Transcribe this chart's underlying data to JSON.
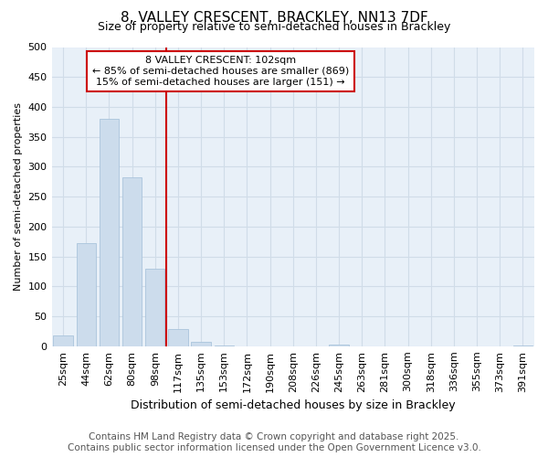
{
  "title1": "8, VALLEY CRESCENT, BRACKLEY, NN13 7DF",
  "title2": "Size of property relative to semi-detached houses in Brackley",
  "xlabel": "Distribution of semi-detached houses by size in Brackley",
  "ylabel": "Number of semi-detached properties",
  "categories": [
    "25sqm",
    "44sqm",
    "62sqm",
    "80sqm",
    "98sqm",
    "117sqm",
    "135sqm",
    "153sqm",
    "172sqm",
    "190sqm",
    "208sqm",
    "226sqm",
    "245sqm",
    "263sqm",
    "281sqm",
    "300sqm",
    "318sqm",
    "336sqm",
    "355sqm",
    "373sqm",
    "391sqm"
  ],
  "values": [
    18,
    172,
    380,
    282,
    130,
    28,
    7,
    1,
    0,
    0,
    0,
    0,
    3,
    0,
    0,
    0,
    0,
    0,
    0,
    0,
    1
  ],
  "bar_color": "#ccdcec",
  "bar_edge_color": "#aac4dc",
  "property_line_x": 4.5,
  "property_label": "8 VALLEY CRESCENT: 102sqm",
  "annotation_line1": "← 85% of semi-detached houses are smaller (869)",
  "annotation_line2": "15% of semi-detached houses are larger (151) →",
  "line_color": "#cc0000",
  "box_color": "#cc0000",
  "ylim": [
    0,
    500
  ],
  "yticks": [
    0,
    50,
    100,
    150,
    200,
    250,
    300,
    350,
    400,
    450,
    500
  ],
  "grid_color": "#d0dce8",
  "bg_color": "#e8f0f8",
  "footnote1": "Contains HM Land Registry data © Crown copyright and database right 2025.",
  "footnote2": "Contains public sector information licensed under the Open Government Licence v3.0.",
  "title_fontsize": 11,
  "subtitle_fontsize": 9,
  "footnote_fontsize": 7.5
}
